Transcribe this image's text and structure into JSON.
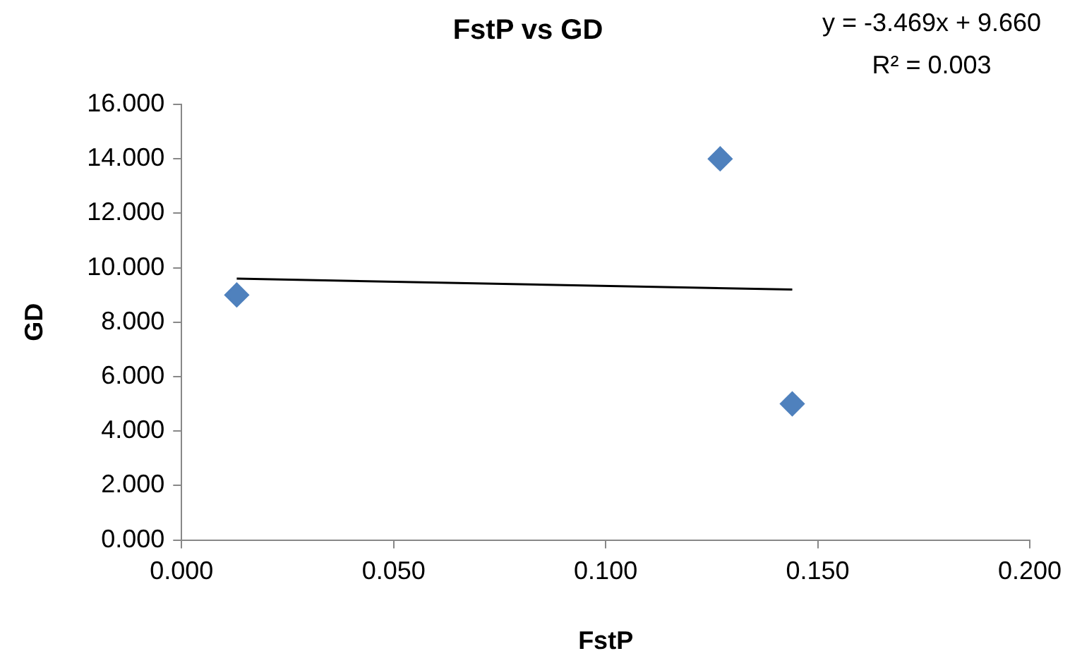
{
  "chart_data": {
    "type": "scatter",
    "title": "FstP vs GD",
    "xlabel": "FstP",
    "ylabel": "GD",
    "annotations": [
      "y = -3.469x + 9.660",
      "R² = 0.003"
    ],
    "series": [
      {
        "type": "scatter",
        "color": "#4f81bd",
        "x": [
          0.013,
          0.127,
          0.144
        ],
        "values": [
          9.0,
          14.0,
          5.0
        ],
        "marker": "diamond"
      },
      {
        "type": "line",
        "color": "#000000",
        "x": [
          0.013,
          0.144
        ],
        "values": [
          9.6,
          9.2
        ],
        "marker": "none",
        "line_style": "solid"
      }
    ],
    "xlim": [
      0,
      0.2
    ],
    "xticks": [
      {
        "value": 0,
        "label": "0.000"
      },
      {
        "value": 0.05,
        "label": "0.050"
      },
      {
        "value": 0.1,
        "label": "0.100"
      },
      {
        "value": 0.15,
        "label": "0.150"
      },
      {
        "value": 0.2,
        "label": "0.200"
      }
    ],
    "ylim": [
      0,
      16
    ],
    "yticks": [
      {
        "value": 0,
        "label": "0.000"
      },
      {
        "value": 2,
        "label": "2.000"
      },
      {
        "value": 4,
        "label": "4.000"
      },
      {
        "value": 6,
        "label": "6.000"
      },
      {
        "value": 8,
        "label": "8.000"
      },
      {
        "value": 10,
        "label": "10.000"
      },
      {
        "value": 12,
        "label": "12.000"
      },
      {
        "value": 14,
        "label": "14.000"
      },
      {
        "value": 16,
        "label": "16.000"
      }
    ],
    "grid": false,
    "legend": false
  }
}
